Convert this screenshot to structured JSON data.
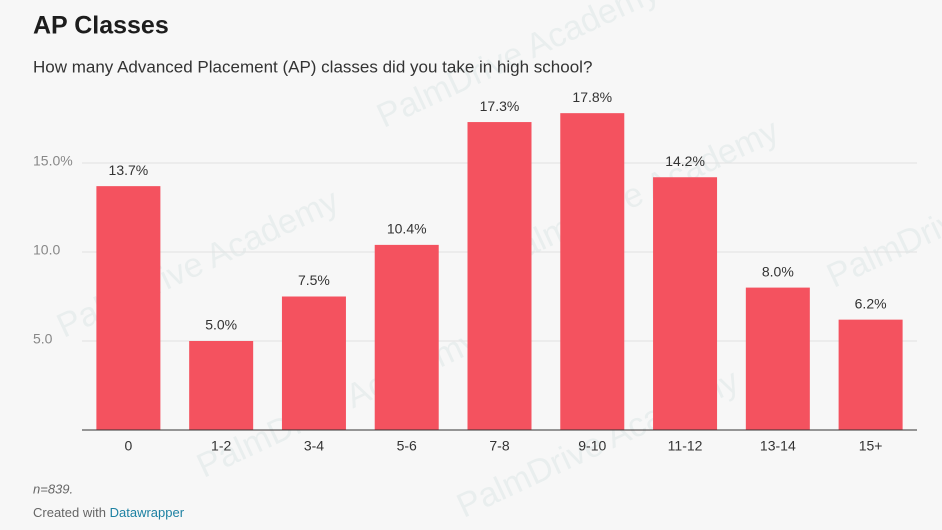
{
  "chart_data": {
    "type": "bar",
    "title": "AP Classes",
    "subtitle": "How many Advanced Placement (AP) classes did you take in high school?",
    "categories": [
      "0",
      "1-2",
      "3-4",
      "5-6",
      "7-8",
      "9-10",
      "11-12",
      "13-14",
      "15+"
    ],
    "values": [
      13.7,
      5.0,
      7.5,
      10.4,
      17.3,
      17.8,
      14.2,
      8.0,
      6.2
    ],
    "value_labels": [
      "13.7%",
      "5.0%",
      "7.5%",
      "10.4%",
      "17.3%",
      "17.8%",
      "14.2%",
      "8.0%",
      "6.2%"
    ],
    "color": "#f4525f",
    "ylim": [
      0,
      18
    ],
    "yticks": [
      {
        "value": 5,
        "label": "5.0"
      },
      {
        "value": 10,
        "label": "10.0"
      },
      {
        "value": 15,
        "label": "15.0%"
      }
    ],
    "grid": true,
    "note": "n=839.",
    "credit": "Created with",
    "credit_link": "Datawrapper",
    "watermark": "PalmDrive Academy"
  }
}
